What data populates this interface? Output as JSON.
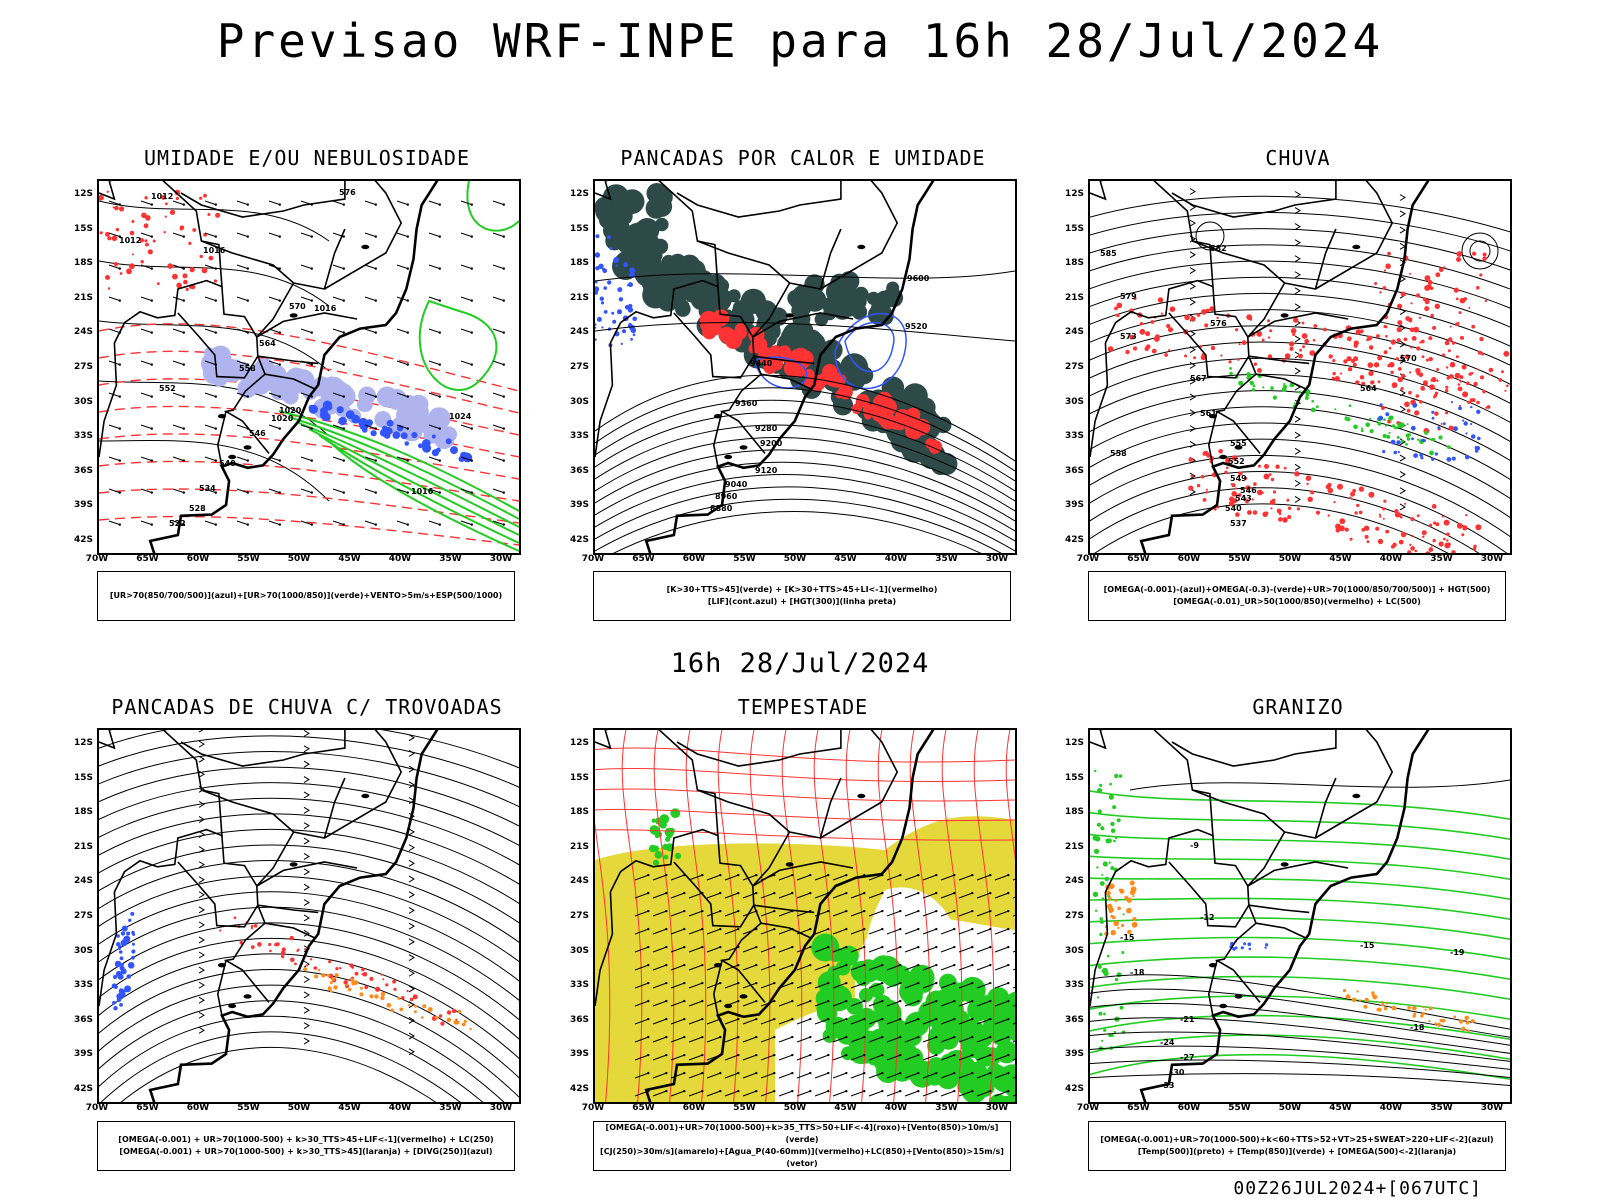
{
  "title": "Previsao WRF-INPE  para 16h 28/Jul/2024",
  "mid_time": "16h 28/Jul/2024",
  "footer": "00Z26JUL2024+[067UTC]",
  "lat_labels": [
    "12S",
    "15S",
    "18S",
    "21S",
    "24S",
    "27S",
    "30S",
    "33S",
    "36S",
    "39S",
    "42S"
  ],
  "lon_labels": [
    "70W",
    "65W",
    "60W",
    "55W",
    "50W",
    "45W",
    "40W",
    "35W",
    "30W"
  ],
  "colors": {
    "blue": "#3355ff",
    "green": "#22cc22",
    "red": "#ff3333",
    "dark": "#2d4a48",
    "yellow": "#e4d83a",
    "orange": "#ff8c1a",
    "lavender": "#b0b4ee"
  },
  "panels": [
    {
      "id": "umidade",
      "title": "UMIDADE E/OU NEBULOSIDADE",
      "legend": [
        "[UR>70(850/700/500)](azul)+[UR>70(1000/850)](verde)+VENTO>5m/s+ESP(500/1000)"
      ]
    },
    {
      "id": "pancadas-calor",
      "title": "PANCADAS POR CALOR E UMIDADE",
      "legend": [
        "[K>30+TTS>45](verde) + [K>30+TTS>45+LI<-1](vermelho)",
        "[LIF](cont.azul) + [HGT(300)](linha preta)"
      ]
    },
    {
      "id": "chuva",
      "title": "CHUVA",
      "legend": [
        "[OMEGA(-0.001)-(azul)+OMEGA(-0.3)-(verde)+UR>70(1000/850/700/500)] + HGT(500)",
        "[OMEGA(-0.01)_UR>50(1000/850)(vermelho) + LC(500)"
      ]
    },
    {
      "id": "trovoadas",
      "title": "PANCADAS DE CHUVA C/ TROVOADAS",
      "legend": [
        "[OMEGA(-0.001) + UR>70(1000-500) + k>30_TTS>45+LIF<-1](vermelho) + LC(250)",
        "[OMEGA(-0.001) + UR>70(1000-500) + k>30_TTS>45](laranja) + [DIVG(250)](azul)"
      ]
    },
    {
      "id": "tempestade",
      "title": "TEMPESTADE",
      "legend": [
        "[OMEGA(-0.001)+UR>70(1000-500)+k>35_TTS>50+LIF<-4](roxo)+[Vento(850)>10m/s](verde)",
        "[CJ(250)>30m/s](amarelo)+[Agua_P(40-60mm)](vermelho)+LC(850)+[Vento(850)>15m/s](vetor)"
      ]
    },
    {
      "id": "granizo",
      "title": "GRANIZO",
      "legend": [
        "[OMEGA(-0.001)+UR>70(1000-500)+k<60+TTS>52+VT>25+SWEAT>220+LIF<-2](azul)",
        "[Temp(500)](preto) + [Temp(850)](verde) + [OMEGA(500)<-2](laranja)"
      ]
    }
  ],
  "contour_values": {
    "umidade": [
      "1012",
      "1012",
      "1016",
      "1016",
      "1020",
      "1020",
      "1024",
      "1016",
      "576",
      "570",
      "564",
      "558",
      "552",
      "546",
      "540",
      "534",
      "528",
      "522"
    ],
    "pancadas-calor": [
      "9600",
      "9520",
      "9440",
      "9360",
      "9280",
      "9200",
      "9120",
      "9040",
      "8960",
      "8880"
    ],
    "chuva": [
      "585",
      "582",
      "579",
      "576",
      "573",
      "570",
      "567",
      "564",
      "561",
      "558",
      "555",
      "552",
      "549",
      "546",
      "543",
      "540",
      "537"
    ],
    "granizo": [
      "-9",
      "-12",
      "-15",
      "-18",
      "-21",
      "-24",
      "-27",
      "-30",
      "-33",
      "-19",
      "-15",
      "-18"
    ]
  }
}
